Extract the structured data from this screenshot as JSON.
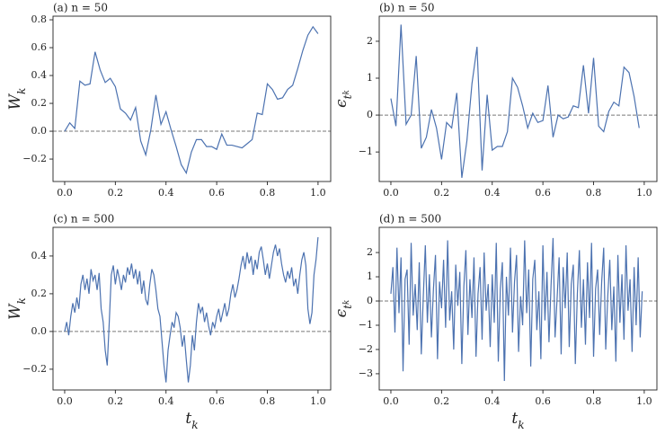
{
  "chart_data": [
    {
      "type": "line",
      "title": "(a) n = 50",
      "ylabel": [
        "W",
        "k"
      ],
      "color": "#4c72b0",
      "hline": 0,
      "xlim": [
        -0.046,
        1.05
      ],
      "ylim": [
        -0.361,
        0.826
      ],
      "xticks": [
        {
          "value": 0,
          "label": "0.0"
        },
        {
          "value": 0.2,
          "label": "0.2"
        },
        {
          "value": 0.4,
          "label": "0.4"
        },
        {
          "value": 0.6,
          "label": "0.6"
        },
        {
          "value": 0.8,
          "label": "0.8"
        },
        {
          "value": 1,
          "label": "1.0"
        }
      ],
      "yticks": [
        {
          "value": -0.2,
          "label": "−0.2"
        },
        {
          "value": 0,
          "label": "0.0"
        },
        {
          "value": 0.2,
          "label": "0.2"
        },
        {
          "value": 0.4,
          "label": "0.4"
        },
        {
          "value": 0.6,
          "label": "0.6"
        },
        {
          "value": 0.8,
          "label": "0.8"
        }
      ],
      "x": [
        0,
        0.02,
        0.04,
        0.06,
        0.08,
        0.1,
        0.12,
        0.14,
        0.16,
        0.18,
        0.2,
        0.22,
        0.24,
        0.26,
        0.28,
        0.3,
        0.32,
        0.34,
        0.36,
        0.38,
        0.4,
        0.42,
        0.44,
        0.46,
        0.48,
        0.5,
        0.52,
        0.54,
        0.56,
        0.58,
        0.6,
        0.62,
        0.64,
        0.66,
        0.68,
        0.7,
        0.72,
        0.74,
        0.76,
        0.78,
        0.8,
        0.82,
        0.84,
        0.86,
        0.88,
        0.9,
        0.92,
        0.94,
        0.96,
        0.98,
        1
      ],
      "values": [
        0,
        0.06,
        0.02,
        0.36,
        0.33,
        0.34,
        0.57,
        0.44,
        0.35,
        0.38,
        0.32,
        0.16,
        0.13,
        0.08,
        0.17,
        -0.07,
        -0.17,
        0.01,
        0.26,
        0.05,
        0.14,
        0.01,
        -0.11,
        -0.24,
        -0.3,
        -0.15,
        -0.06,
        -0.06,
        -0.11,
        -0.11,
        -0.13,
        -0.02,
        -0.1,
        -0.1,
        -0.11,
        -0.12,
        -0.09,
        -0.06,
        0.13,
        0.12,
        0.34,
        0.3,
        0.23,
        0.24,
        0.3,
        0.33,
        0.45,
        0.58,
        0.69,
        0.75,
        0.7
      ]
    },
    {
      "type": "line",
      "title": "(b) n = 50",
      "ylabel": [
        "ϵ",
        "t",
        "k"
      ],
      "color": "#4c72b0",
      "hline": 0,
      "xlim": [
        -0.046,
        1.05
      ],
      "ylim": [
        -1.8,
        2.68
      ],
      "xticks": [
        {
          "value": 0,
          "label": "0.0"
        },
        {
          "value": 0.2,
          "label": "0.2"
        },
        {
          "value": 0.4,
          "label": "0.4"
        },
        {
          "value": 0.6,
          "label": "0.6"
        },
        {
          "value": 0.8,
          "label": "0.8"
        },
        {
          "value": 1,
          "label": "1.0"
        }
      ],
      "yticks": [
        {
          "value": -1,
          "label": "−1"
        },
        0,
        1,
        2
      ],
      "x": [
        0,
        0.02,
        0.04,
        0.06,
        0.08,
        0.1,
        0.12,
        0.14,
        0.16,
        0.18,
        0.2,
        0.22,
        0.24,
        0.26,
        0.28,
        0.3,
        0.32,
        0.34,
        0.36,
        0.38,
        0.4,
        0.42,
        0.44,
        0.46,
        0.48,
        0.5,
        0.52,
        0.54,
        0.56,
        0.58,
        0.6,
        0.62,
        0.64,
        0.66,
        0.68,
        0.7,
        0.72,
        0.74,
        0.76,
        0.78,
        0.8,
        0.82,
        0.84,
        0.86,
        0.88,
        0.9,
        0.92,
        0.94,
        0.96,
        0.98
      ],
      "values": [
        0.45,
        -0.3,
        2.45,
        -0.25,
        0,
        1.6,
        -0.9,
        -0.6,
        0.15,
        -0.35,
        -1.2,
        -0.2,
        -0.35,
        0.6,
        -1.7,
        -0.7,
        0.85,
        1.85,
        -1.5,
        0.55,
        -0.95,
        -0.85,
        -0.85,
        -0.45,
        1.0,
        0.75,
        0.25,
        -0.35,
        0.05,
        -0.2,
        -0.15,
        0.8,
        -0.6,
        0,
        -0.1,
        -0.05,
        0.25,
        0.2,
        1.35,
        0.05,
        1.55,
        -0.3,
        -0.45,
        0.1,
        0.35,
        0.25,
        1.3,
        1.15,
        0.5,
        -0.35
      ]
    },
    {
      "type": "line",
      "title": "(c) n = 500",
      "ylabel": [
        "W",
        "k"
      ],
      "xlabel": [
        "t",
        "k"
      ],
      "color": "#4c72b0",
      "hline": 0,
      "xlim": [
        -0.046,
        1.05
      ],
      "ylim": [
        -0.31,
        0.552
      ],
      "xticks": [
        {
          "value": 0,
          "label": "0.0"
        },
        {
          "value": 0.2,
          "label": "0.2"
        },
        {
          "value": 0.4,
          "label": "0.4"
        },
        {
          "value": 0.6,
          "label": "0.6"
        },
        {
          "value": 0.8,
          "label": "0.8"
        },
        {
          "value": 1,
          "label": "1.0"
        }
      ],
      "yticks": [
        {
          "value": -0.2,
          "label": "−0.2"
        },
        {
          "value": 0,
          "label": "0.0"
        },
        {
          "value": 0.2,
          "label": "0.2"
        },
        {
          "value": 0.4,
          "label": "0.4"
        }
      ],
      "x": [
        0,
        0.008,
        0.016,
        0.024,
        0.032,
        0.04,
        0.048,
        0.056,
        0.064,
        0.072,
        0.08,
        0.088,
        0.096,
        0.104,
        0.112,
        0.12,
        0.128,
        0.136,
        0.144,
        0.152,
        0.16,
        0.168,
        0.176,
        0.184,
        0.192,
        0.2,
        0.208,
        0.216,
        0.224,
        0.232,
        0.24,
        0.248,
        0.256,
        0.264,
        0.272,
        0.28,
        0.288,
        0.296,
        0.304,
        0.312,
        0.32,
        0.328,
        0.336,
        0.344,
        0.352,
        0.36,
        0.368,
        0.376,
        0.384,
        0.392,
        0.4,
        0.408,
        0.416,
        0.424,
        0.432,
        0.44,
        0.448,
        0.456,
        0.464,
        0.472,
        0.48,
        0.488,
        0.496,
        0.504,
        0.512,
        0.52,
        0.528,
        0.536,
        0.544,
        0.552,
        0.56,
        0.568,
        0.576,
        0.584,
        0.592,
        0.6,
        0.608,
        0.616,
        0.624,
        0.632,
        0.64,
        0.648,
        0.656,
        0.664,
        0.672,
        0.68,
        0.688,
        0.696,
        0.704,
        0.712,
        0.72,
        0.728,
        0.736,
        0.744,
        0.752,
        0.76,
        0.768,
        0.776,
        0.784,
        0.792,
        0.8,
        0.808,
        0.816,
        0.824,
        0.832,
        0.84,
        0.848,
        0.856,
        0.864,
        0.872,
        0.88,
        0.888,
        0.896,
        0.904,
        0.912,
        0.92,
        0.928,
        0.936,
        0.944,
        0.952,
        0.96,
        0.968,
        0.976,
        0.984,
        0.992,
        1
      ],
      "values": [
        0,
        0.05,
        -0.02,
        0.08,
        0.15,
        0.1,
        0.18,
        0.12,
        0.25,
        0.3,
        0.22,
        0.28,
        0.2,
        0.33,
        0.27,
        0.3,
        0.22,
        0.31,
        0.12,
        0.05,
        -0.1,
        -0.18,
        0.05,
        0.3,
        0.35,
        0.25,
        0.33,
        0.28,
        0.22,
        0.3,
        0.26,
        0.34,
        0.3,
        0.36,
        0.28,
        0.33,
        0.25,
        0.32,
        0.2,
        0.27,
        0.17,
        0.14,
        0.25,
        0.33,
        0.3,
        0.22,
        0.12,
        0.08,
        -0.05,
        -0.18,
        -0.27,
        -0.1,
        -0.02,
        0.05,
        0.02,
        0.1,
        0.08,
        0.02,
        -0.08,
        -0.02,
        -0.15,
        -0.27,
        -0.18,
        -0.02,
        -0.1,
        0.05,
        0.15,
        0.1,
        0.13,
        0.05,
        0.1,
        0.03,
        -0.02,
        0.05,
        0.02,
        0.08,
        0.12,
        0.05,
        0.1,
        0.15,
        0.08,
        0.12,
        0.2,
        0.25,
        0.18,
        0.22,
        0.28,
        0.35,
        0.4,
        0.33,
        0.42,
        0.36,
        0.4,
        0.3,
        0.38,
        0.33,
        0.42,
        0.45,
        0.38,
        0.3,
        0.36,
        0.28,
        0.35,
        0.42,
        0.46,
        0.4,
        0.44,
        0.36,
        0.3,
        0.26,
        0.32,
        0.28,
        0.34,
        0.24,
        0.28,
        0.2,
        0.3,
        0.38,
        0.42,
        0.35,
        0.12,
        0.04,
        0.1,
        0.3,
        0.38,
        0.5
      ]
    },
    {
      "type": "line",
      "title": "(d) n = 500",
      "ylabel": [
        "ϵ",
        "t",
        "k"
      ],
      "xlabel": [
        "t",
        "k"
      ],
      "color": "#4c72b0",
      "hline": 0,
      "xlim": [
        -0.046,
        1.05
      ],
      "ylim": [
        -3.67,
        3.04
      ],
      "xticks": [
        {
          "value": 0,
          "label": "0.0"
        },
        {
          "value": 0.2,
          "label": "0.2"
        },
        {
          "value": 0.4,
          "label": "0.4"
        },
        {
          "value": 0.6,
          "label": "0.6"
        },
        {
          "value": 0.8,
          "label": "0.8"
        },
        {
          "value": 1,
          "label": "1.0"
        }
      ],
      "yticks": [
        {
          "value": -3,
          "label": "−3"
        },
        {
          "value": -2,
          "label": "−2"
        },
        {
          "value": -1,
          "label": "−1"
        },
        0,
        1,
        2
      ],
      "x": [
        0,
        0.008,
        0.016,
        0.024,
        0.032,
        0.04,
        0.048,
        0.056,
        0.064,
        0.072,
        0.08,
        0.088,
        0.096,
        0.104,
        0.112,
        0.12,
        0.128,
        0.136,
        0.144,
        0.152,
        0.16,
        0.168,
        0.176,
        0.184,
        0.192,
        0.2,
        0.208,
        0.216,
        0.224,
        0.232,
        0.24,
        0.248,
        0.256,
        0.264,
        0.272,
        0.28,
        0.288,
        0.296,
        0.304,
        0.312,
        0.32,
        0.328,
        0.336,
        0.344,
        0.352,
        0.36,
        0.368,
        0.376,
        0.384,
        0.392,
        0.4,
        0.408,
        0.416,
        0.424,
        0.432,
        0.44,
        0.448,
        0.456,
        0.464,
        0.472,
        0.48,
        0.488,
        0.496,
        0.504,
        0.512,
        0.52,
        0.528,
        0.536,
        0.544,
        0.552,
        0.56,
        0.568,
        0.576,
        0.584,
        0.592,
        0.6,
        0.608,
        0.616,
        0.624,
        0.632,
        0.64,
        0.648,
        0.656,
        0.664,
        0.672,
        0.68,
        0.688,
        0.696,
        0.704,
        0.712,
        0.72,
        0.728,
        0.736,
        0.744,
        0.752,
        0.76,
        0.768,
        0.776,
        0.784,
        0.792,
        0.8,
        0.808,
        0.816,
        0.824,
        0.832,
        0.84,
        0.848,
        0.856,
        0.864,
        0.872,
        0.88,
        0.888,
        0.896,
        0.904,
        0.912,
        0.92,
        0.928,
        0.936,
        0.944,
        0.952,
        0.96,
        0.968,
        0.976,
        0.984,
        0.992
      ],
      "values": [
        0.3,
        1.4,
        -1.3,
        2.2,
        -0.5,
        1.8,
        -2.9,
        0.9,
        1.3,
        -1.8,
        2.4,
        -0.6,
        0.7,
        -1.2,
        1.6,
        -2.2,
        0.2,
        2.3,
        -0.9,
        1.1,
        -1.5,
        0.5,
        1.9,
        -2.4,
        0.8,
        -0.3,
        1.7,
        -1.1,
        2.5,
        -0.8,
        0.4,
        -2.0,
        1.5,
        -0.2,
        1.2,
        -2.6,
        0.6,
        2.1,
        -1.4,
        0.9,
        -0.7,
        1.8,
        -2.3,
        0.3,
        1.4,
        -1.6,
        2.0,
        -0.4,
        0.7,
        -1.9,
        1.1,
        -0.9,
        2.4,
        -2.5,
        0.5,
        1.6,
        -3.3,
        1.0,
        -0.6,
        2.2,
        -1.3,
        0.8,
        1.9,
        -2.1,
        0.2,
        -1.0,
        2.5,
        -0.5,
        1.3,
        -2.7,
        0.9,
        1.7,
        -1.2,
        0.4,
        -2.4,
        2.3,
        -0.8,
        1.2,
        -1.7,
        0.6,
        2.6,
        -1.5,
        0.1,
        1.8,
        -2.2,
        1.4,
        -0.3,
        2.0,
        -1.9,
        0.7,
        1.5,
        -2.6,
        0.3,
        2.1,
        -1.1,
        0.9,
        -1.8,
        1.6,
        -0.7,
        2.4,
        -2.3,
        0.5,
        1.3,
        -1.4,
        0.8,
        2.2,
        -2.0,
        0.2,
        1.7,
        -1.2,
        0.6,
        -2.5,
        1.9,
        -0.9,
        1.1,
        -1.6,
        2.3,
        -0.4,
        0.9,
        -2.1,
        1.4,
        -1.0,
        1.8,
        -1.5,
        0.4
      ]
    }
  ]
}
